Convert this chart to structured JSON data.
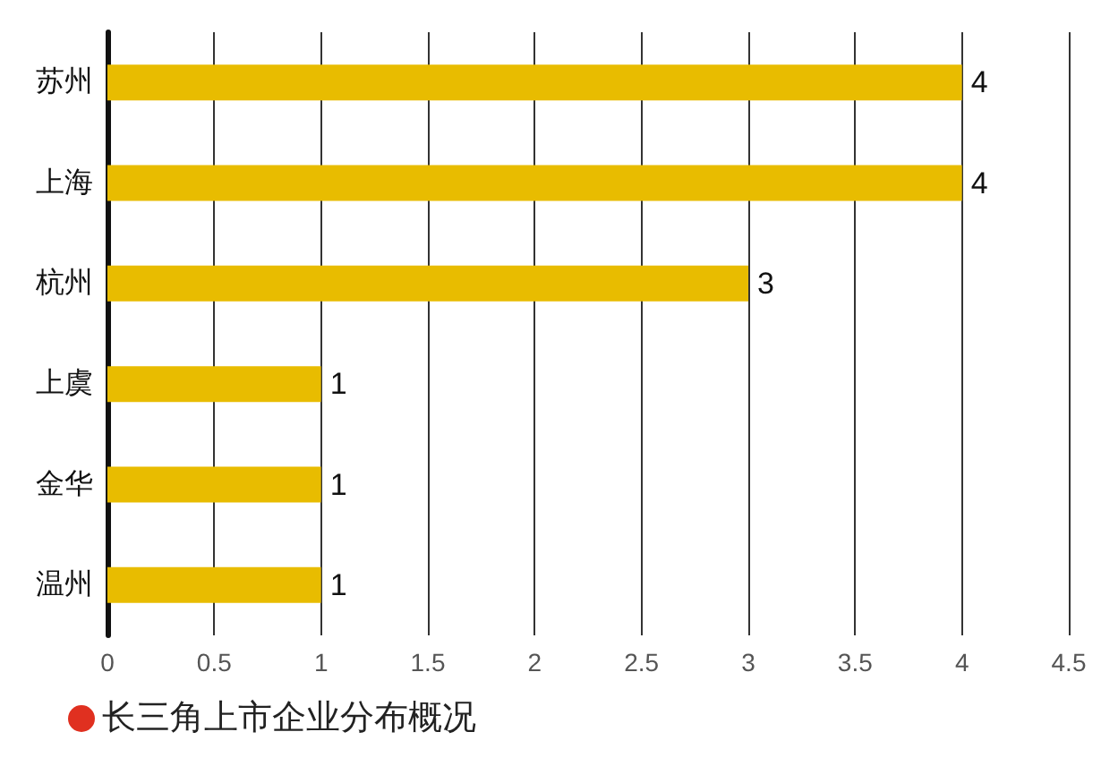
{
  "chart_data": {
    "type": "bar",
    "orientation": "horizontal",
    "title": "长三角上市企业分布概况",
    "categories": [
      "苏州",
      "上海",
      "杭州",
      "上虞",
      "金华",
      "温州"
    ],
    "values": [
      4,
      4,
      3,
      1,
      1,
      1
    ],
    "color": "#e8bc00",
    "xlim": [
      0,
      4.5
    ],
    "xticks": [
      0,
      0.5,
      1,
      1.5,
      2,
      2.5,
      3,
      3.5,
      4,
      4.5
    ],
    "grid": "x",
    "data_labels": true
  }
}
